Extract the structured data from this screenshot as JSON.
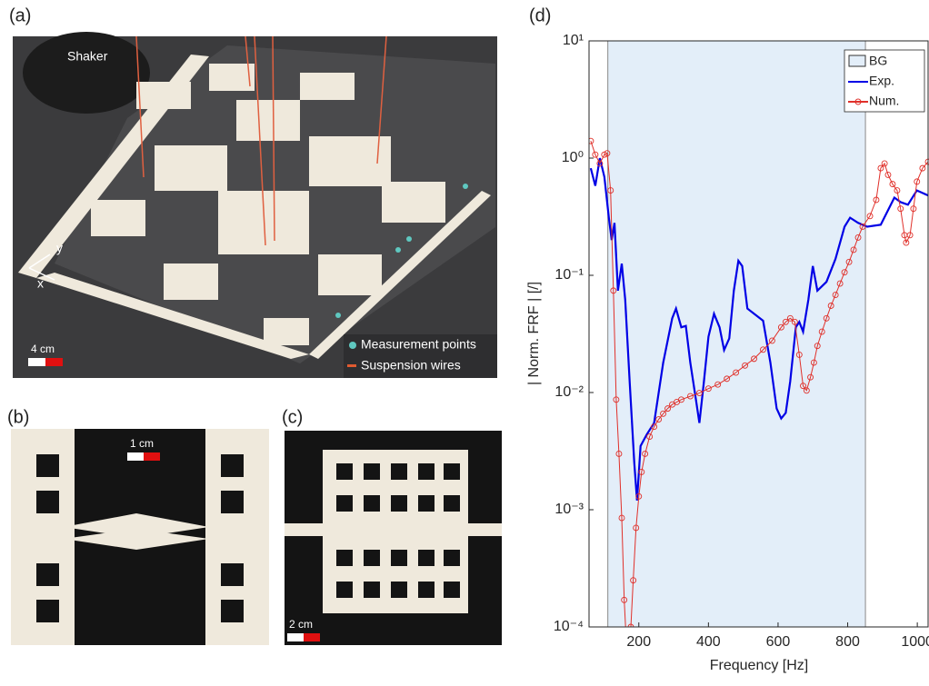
{
  "panels": {
    "a": {
      "label": "(a)",
      "shaker": "Shaker",
      "axis_x": "x",
      "axis_y": "y",
      "scale": "4 cm",
      "legend_points": "Measurement points",
      "legend_wires": "Suspension wires"
    },
    "b": {
      "label": "(b)",
      "scale": "1 cm"
    },
    "c": {
      "label": "(c)",
      "scale": "2 cm"
    },
    "d": {
      "label": "(d)"
    }
  },
  "chart_data": {
    "type": "line",
    "xlabel": "Frequency [Hz]",
    "ylabel": "| Norm. FRF | [/]",
    "xlim": [
      57,
      1031
    ],
    "xticks": [
      200,
      400,
      600,
      800,
      1000
    ],
    "ylim": [
      0.0001,
      10
    ],
    "yscale": "log",
    "yticks": [
      {
        "value": 0.0001,
        "label": "10⁻⁴"
      },
      {
        "value": 0.001,
        "label": "10⁻³"
      },
      {
        "value": 0.01,
        "label": "10⁻²"
      },
      {
        "value": 0.1,
        "label": "10⁻¹"
      },
      {
        "value": 1,
        "label": "10⁰"
      },
      {
        "value": 10,
        "label": "10¹"
      }
    ],
    "band": {
      "name": "BG",
      "range": [
        111,
        851
      ],
      "color": "#e3eef9"
    },
    "legend": "northeast",
    "series": [
      {
        "name": "Exp.",
        "color": "#0000e6",
        "marker": "none",
        "x": [
          62,
          75,
          88,
          101,
          114,
          122,
          130,
          140,
          151,
          161,
          174,
          187,
          195,
          205,
          223,
          244,
          270,
          296,
          307,
          322,
          335,
          348,
          364,
          374,
          387,
          400,
          416,
          432,
          445,
          460,
          473,
          486,
          497,
          512,
          531,
          557,
          578,
          596,
          609,
          622,
          635,
          651,
          661,
          672,
          687,
          700,
          713,
          739,
          765,
          791,
          807,
          830,
          856,
          895,
          934,
          953,
          973,
          999,
          1031
        ],
        "values": [
          0.82,
          0.58,
          1.0,
          0.69,
          0.31,
          0.2,
          0.28,
          0.074,
          0.126,
          0.062,
          0.012,
          0.0025,
          0.0012,
          0.0035,
          0.0044,
          0.0055,
          0.018,
          0.043,
          0.052,
          0.036,
          0.037,
          0.018,
          0.0087,
          0.0055,
          0.0124,
          0.03,
          0.047,
          0.036,
          0.023,
          0.029,
          0.074,
          0.133,
          0.12,
          0.052,
          0.047,
          0.041,
          0.018,
          0.0073,
          0.006,
          0.0067,
          0.0124,
          0.036,
          0.04,
          0.033,
          0.062,
          0.12,
          0.074,
          0.088,
          0.138,
          0.26,
          0.31,
          0.28,
          0.26,
          0.27,
          0.46,
          0.42,
          0.4,
          0.53,
          0.48
        ]
      },
      {
        "name": "Num.",
        "color": "#e0302a",
        "marker": "circle",
        "x": [
          62,
          75,
          88,
          101,
          109,
          119,
          127,
          135,
          143,
          151,
          158,
          166,
          177,
          184,
          192,
          200,
          208,
          218,
          231,
          244,
          257,
          270,
          283,
          296,
          309,
          322,
          348,
          374,
          400,
          427,
          453,
          479,
          505,
          531,
          557,
          583,
          609,
          622,
          635,
          648,
          661,
          672,
          682,
          693,
          703,
          713,
          726,
          739,
          752,
          765,
          778,
          791,
          804,
          817,
          830,
          843,
          864,
          882,
          895,
          906,
          916,
          929,
          942,
          952,
          963,
          968,
          979,
          989,
          999,
          1015,
          1031
        ],
        "values": [
          1.4,
          1.07,
          0.9,
          1.07,
          1.1,
          0.53,
          0.074,
          0.0087,
          0.003,
          0.00085,
          0.00017,
          5.9e-05,
          0.0001,
          0.00025,
          0.0007,
          0.0013,
          0.0021,
          0.003,
          0.0042,
          0.0051,
          0.0059,
          0.0066,
          0.0073,
          0.0079,
          0.0083,
          0.0087,
          0.0093,
          0.0099,
          0.0108,
          0.0117,
          0.0131,
          0.0148,
          0.017,
          0.0194,
          0.0232,
          0.0277,
          0.036,
          0.04,
          0.043,
          0.04,
          0.021,
          0.0114,
          0.0104,
          0.0135,
          0.018,
          0.025,
          0.033,
          0.043,
          0.055,
          0.068,
          0.085,
          0.106,
          0.13,
          0.165,
          0.21,
          0.26,
          0.32,
          0.44,
          0.82,
          0.9,
          0.72,
          0.6,
          0.53,
          0.37,
          0.22,
          0.19,
          0.22,
          0.37,
          0.63,
          0.82,
          0.93
        ]
      }
    ]
  }
}
